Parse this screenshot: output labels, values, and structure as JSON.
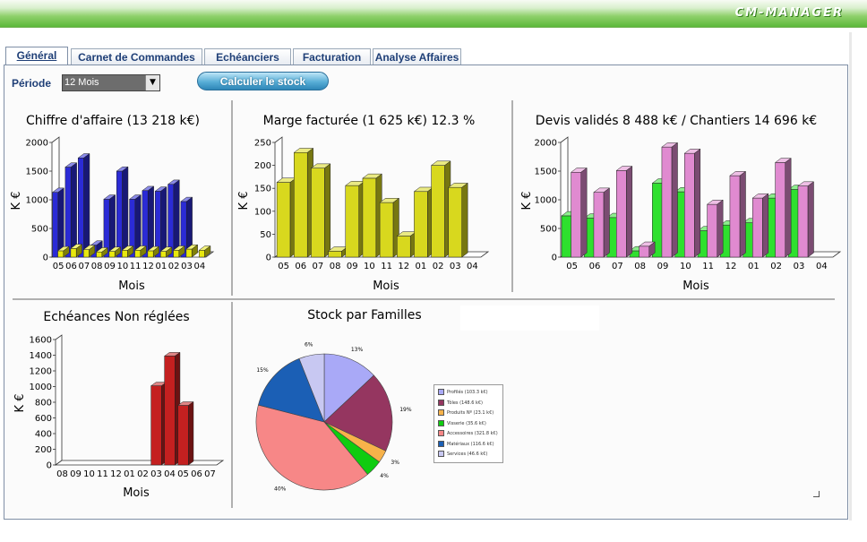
{
  "app": {
    "title": "CM-MANAGER"
  },
  "tabs": [
    {
      "label": "Général",
      "active": true
    },
    {
      "label": "Carnet de Commandes",
      "active": false
    },
    {
      "label": "Echéanciers",
      "active": false
    },
    {
      "label": "Facturation",
      "active": false
    },
    {
      "label": "Analyse Affaires",
      "active": false
    }
  ],
  "toolbar": {
    "period_label": "Période",
    "period_value": "12 Mois",
    "calc_button": "Calculer le stock"
  },
  "chart_data": [
    {
      "type": "bar",
      "title": "Chiffre d'affaire (13 218 k€)",
      "xlabel": "Mois",
      "ylabel": "K €",
      "categories": [
        "05",
        "06",
        "07",
        "08",
        "09",
        "10",
        "11",
        "12",
        "01",
        "02",
        "03",
        "04"
      ],
      "ylim": [
        0,
        2000
      ],
      "yticks": [
        0,
        500,
        1000,
        1500,
        2000
      ],
      "series": [
        {
          "values": [
            1130,
            1570,
            1730,
            210,
            1010,
            1500,
            1010,
            1160,
            1150,
            1270,
            970,
            0
          ],
          "color": "#2b2bd6"
        },
        {
          "values": [
            110,
            150,
            130,
            90,
            100,
            120,
            120,
            110,
            100,
            120,
            140,
            120
          ],
          "color": "#e8e80e"
        }
      ]
    },
    {
      "type": "bar",
      "title": "Marge facturée (1 625 k€) 12.3 %",
      "xlabel": "Mois",
      "ylabel": "K €",
      "categories": [
        "05",
        "06",
        "07",
        "08",
        "09",
        "10",
        "11",
        "12",
        "01",
        "02",
        "03",
        "04"
      ],
      "ylim": [
        0,
        250
      ],
      "yticks": [
        0,
        50,
        100,
        150,
        200,
        250
      ],
      "series": [
        {
          "values": [
            163,
            228,
            194,
            13,
            156,
            172,
            119,
            46,
            143,
            200,
            152,
            0
          ],
          "color": "#d8d81e"
        }
      ]
    },
    {
      "type": "bar",
      "title": "Devis validés 8 488 k€  /  Chantiers 14 696 k€",
      "xlabel": "Mois",
      "ylabel": "K €",
      "categories": [
        "05",
        "06",
        "07",
        "08",
        "09",
        "10",
        "11",
        "12",
        "01",
        "02",
        "03",
        "04"
      ],
      "ylim": [
        0,
        2000
      ],
      "yticks": [
        0,
        500,
        1000,
        1500,
        2000
      ],
      "series": [
        {
          "values": [
            720,
            680,
            690,
            110,
            1290,
            1140,
            460,
            560,
            600,
            1030,
            1180,
            0
          ],
          "color": "#2ee02e"
        },
        {
          "values": [
            1480,
            1130,
            1510,
            190,
            1920,
            1810,
            920,
            1420,
            1030,
            1650,
            1240,
            0
          ],
          "color": "#e08ad0"
        }
      ]
    },
    {
      "type": "bar",
      "title": "Echéances Non réglées",
      "xlabel": "Mois",
      "ylabel": "K €",
      "categories": [
        "08",
        "09",
        "10",
        "11",
        "12",
        "01",
        "02",
        "03",
        "04",
        "05",
        "06",
        "07"
      ],
      "ylim": [
        0,
        1600
      ],
      "yticks": [
        0,
        200,
        400,
        600,
        800,
        1000,
        1200,
        1400,
        1600
      ],
      "series": [
        {
          "values": [
            0,
            0,
            0,
            0,
            0,
            0,
            0,
            1010,
            1390,
            760,
            0,
            0
          ],
          "color": "#c42020"
        }
      ]
    },
    {
      "type": "pie",
      "title": "Stock par Familles",
      "slices": [
        {
          "label": "Profilés (103.3 k€)",
          "value": 13,
          "pct_label": "13%",
          "color": "#a9a9f7"
        },
        {
          "label": "Tôles (148.6 k€)",
          "value": 19,
          "pct_label": "19%",
          "color": "#953660"
        },
        {
          "label": "Produits Nº (23.1 k€)",
          "value": 3,
          "pct_label": "3%",
          "color": "#f7b24a"
        },
        {
          "label": "Visserie (35.6 k€)",
          "value": 4,
          "pct_label": "4%",
          "color": "#10cc10"
        },
        {
          "label": "Accessoires (321.8 k€)",
          "value": 40,
          "pct_label": "40%",
          "color": "#f78787"
        },
        {
          "label": "Matériaux (116.6 k€)",
          "value": 15,
          "pct_label": "15%",
          "color": "#1b5fb5"
        },
        {
          "label": "Services (46.6 k€)",
          "value": 6,
          "pct_label": "6%",
          "color": "#c8c8f2"
        }
      ]
    }
  ]
}
